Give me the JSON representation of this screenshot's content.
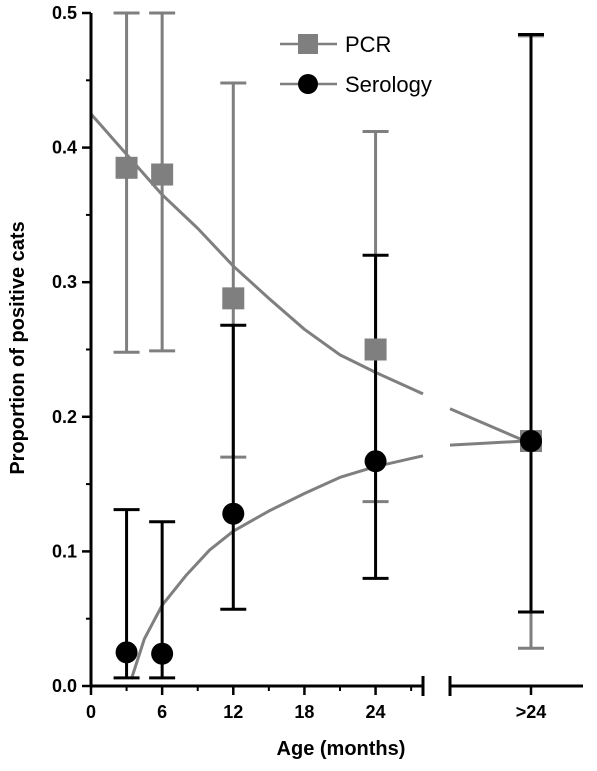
{
  "chart_data": {
    "type": "scatter",
    "xlabel": "Age (months)",
    "ylabel": "Proportion of positive cats",
    "ylim": [
      0,
      0.5
    ],
    "y_ticks": [
      "0.0",
      "0.1",
      "0.2",
      "0.3",
      "0.4",
      "0.5"
    ],
    "x_ticks": [
      "0",
      "6",
      "12",
      "18",
      "24"
    ],
    "x_range_segment1": [
      0,
      28
    ],
    "x_category_segment2": ">24",
    "grid": false,
    "legend_position": "top-right",
    "colors": {
      "pcr": "#7f7f7f",
      "serology": "#000000"
    },
    "series": [
      {
        "name": "PCR",
        "marker": "square",
        "points": [
          {
            "x": 3,
            "y": 0.385,
            "ylow": 0.248,
            "yhigh": 0.5
          },
          {
            "x": 6,
            "y": 0.38,
            "ylow": 0.249,
            "yhigh": 0.5
          },
          {
            "x": 12,
            "y": 0.288,
            "ylow": 0.17,
            "yhigh": 0.448
          },
          {
            "x": 24,
            "y": 0.25,
            "ylow": 0.137,
            "yhigh": 0.412
          },
          {
            "x": ">24",
            "y": 0.182,
            "ylow": 0.028,
            "yhigh": 0.483
          }
        ],
        "fit_curve": [
          [
            0,
            0.425
          ],
          [
            3,
            0.395
          ],
          [
            6,
            0.365
          ],
          [
            9,
            0.34
          ],
          [
            12,
            0.312
          ],
          [
            15,
            0.288
          ],
          [
            18,
            0.265
          ],
          [
            21,
            0.246
          ],
          [
            24,
            0.233
          ],
          [
            28,
            0.217
          ]
        ]
      },
      {
        "name": "Serology",
        "marker": "circle",
        "points": [
          {
            "x": 3,
            "y": 0.025,
            "ylow": 0.006,
            "yhigh": 0.131
          },
          {
            "x": 6,
            "y": 0.024,
            "ylow": 0.006,
            "yhigh": 0.122
          },
          {
            "x": 12,
            "y": 0.128,
            "ylow": 0.057,
            "yhigh": 0.268
          },
          {
            "x": 24,
            "y": 0.167,
            "ylow": 0.08,
            "yhigh": 0.32
          },
          {
            "x": ">24",
            "y": 0.182,
            "ylow": 0.055,
            "yhigh": 0.484
          }
        ],
        "fit_curve": [
          [
            3.4,
            0.005
          ],
          [
            4.5,
            0.035
          ],
          [
            6,
            0.06
          ],
          [
            8,
            0.082
          ],
          [
            10,
            0.101
          ],
          [
            12,
            0.115
          ],
          [
            15,
            0.13
          ],
          [
            18,
            0.143
          ],
          [
            21,
            0.155
          ],
          [
            24,
            0.163
          ],
          [
            28,
            0.171
          ]
        ]
      }
    ]
  }
}
